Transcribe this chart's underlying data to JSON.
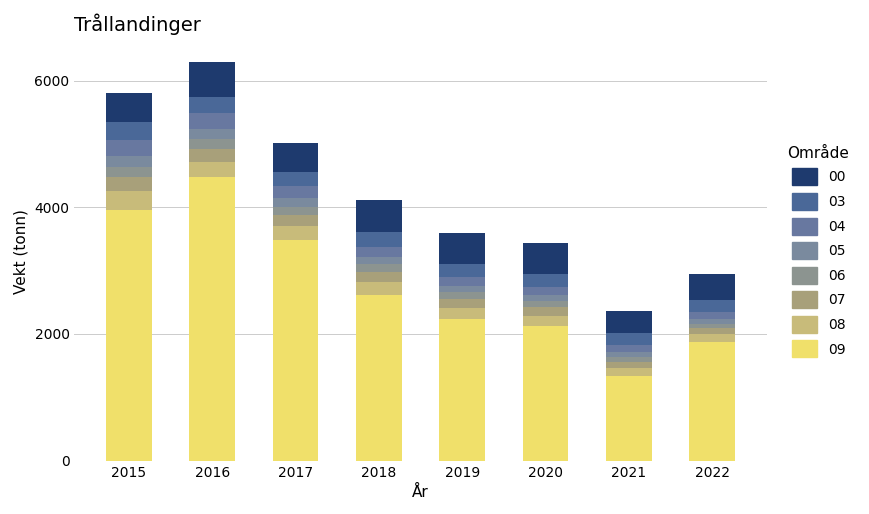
{
  "title": "Trållandinger",
  "xlabel": "År",
  "ylabel": "Vekt (tonn)",
  "years": [
    2015,
    2016,
    2017,
    2018,
    2019,
    2020,
    2021,
    2022
  ],
  "areas": [
    "09",
    "08",
    "07",
    "06",
    "05",
    "04",
    "03",
    "00"
  ],
  "colors": {
    "09": "#f0e06a",
    "08": "#c8bb7a",
    "07": "#a8a07a",
    "06": "#8c9490",
    "05": "#7a8a9e",
    "04": "#6878a0",
    "03": "#4a6898",
    "00": "#1e3a6e"
  },
  "data": {
    "09": [
      3950,
      4480,
      3480,
      2620,
      2230,
      2130,
      1330,
      1880
    ],
    "08": [
      300,
      240,
      220,
      200,
      180,
      160,
      130,
      120
    ],
    "07": [
      220,
      200,
      170,
      160,
      140,
      130,
      100,
      90
    ],
    "06": [
      160,
      150,
      130,
      120,
      110,
      100,
      80,
      75
    ],
    "05": [
      180,
      170,
      140,
      120,
      100,
      95,
      80,
      75
    ],
    "04": [
      250,
      240,
      190,
      160,
      140,
      130,
      110,
      100
    ],
    "03": [
      280,
      260,
      230,
      230,
      210,
      205,
      180,
      190
    ],
    "00": [
      460,
      560,
      460,
      500,
      490,
      490,
      360,
      420
    ]
  },
  "ylim": [
    0,
    6600
  ],
  "yticks": [
    0,
    2000,
    4000,
    6000
  ],
  "background_color": "#ffffff",
  "grid_color": "#cccccc",
  "bar_width": 0.55,
  "legend_title": "Område",
  "legend_order": [
    "00",
    "03",
    "04",
    "05",
    "06",
    "07",
    "08",
    "09"
  ]
}
